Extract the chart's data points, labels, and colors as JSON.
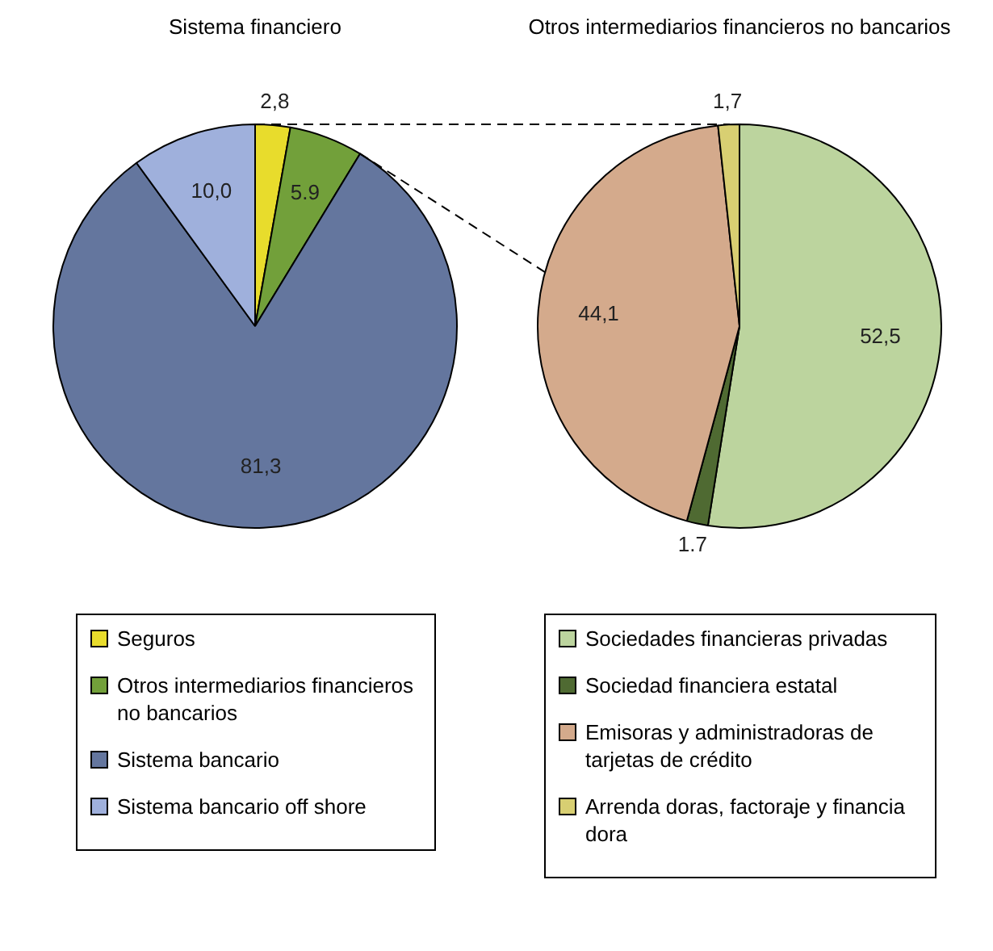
{
  "chart_data": [
    {
      "type": "pie",
      "title": "Sistema financiero",
      "categories": [
        "Seguros",
        "Otros intermediarios financieros no bancarios",
        "Sistema bancario",
        "Sistema bancario off shore"
      ],
      "values": [
        2.8,
        5.9,
        81.3,
        10.0
      ],
      "colors": [
        "#e8dc2c",
        "#72a03a",
        "#64769e",
        "#9fb0dc"
      ],
      "value_labels": [
        "2,8",
        "5.9",
        "81,3",
        "10,0"
      ],
      "legend": "bottom"
    },
    {
      "type": "pie",
      "title": "Otros intermediarios financieros no bancarios",
      "categories": [
        "Sociedades financieras privadas",
        "Sociedad financiera estatal",
        "Emisoras y administradoras de tarjetas de crédito",
        "Arrenda doras, factoraje y financia dora"
      ],
      "values": [
        52.5,
        1.7,
        44.1,
        1.7
      ],
      "colors": [
        "#bcd49e",
        "#4f6a32",
        "#d4aa8c",
        "#d8cf72"
      ],
      "value_labels": [
        "52,5",
        "1.7",
        "44,1",
        "1,7"
      ],
      "legend": "bottom"
    }
  ]
}
